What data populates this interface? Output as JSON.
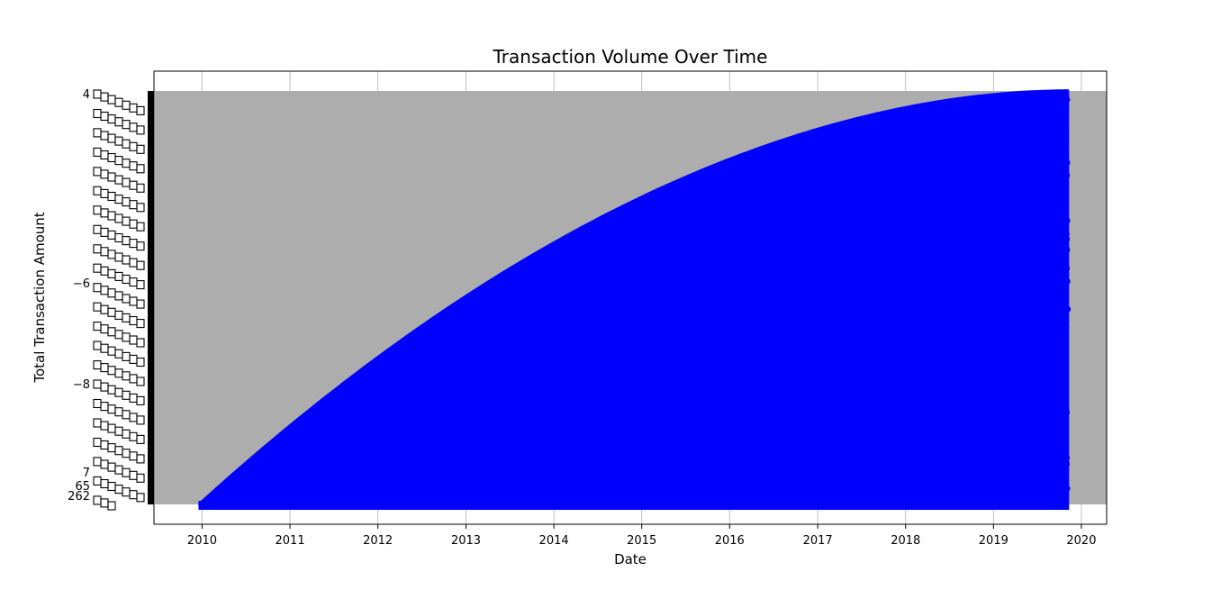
{
  "chart_data": {
    "type": "scatter",
    "title": "Transaction Volume Over Time",
    "xlabel": "Date",
    "ylabel": "Total Transaction Amount",
    "x_ticks": [
      "2010",
      "2011",
      "2012",
      "2013",
      "2014",
      "2015",
      "2016",
      "2017",
      "2018",
      "2019",
      "2020"
    ],
    "xlim": [
      "2009-06-15",
      "2020-04-15"
    ],
    "x_range_data": [
      "2010-01-01",
      "2019-10-27"
    ],
    "y_axis_note": "categorical y-axis: every distinct cumulative value is its own tick, so the tick labels overlap and are illegible",
    "y_ticks_sample": [
      "4",
      "262",
      "7",
      "65",
      "...",
      "−8",
      "...",
      "−6",
      "..."
    ],
    "fill_color": "#adadad",
    "marker_color": "#0000ff",
    "grid": true,
    "legend": "none",
    "series": [
      {
        "marker": "circle",
        "shape": "dense points filling the region below a concave running-total curve that climbs from the bottom-left to the top-right"
      }
    ]
  }
}
